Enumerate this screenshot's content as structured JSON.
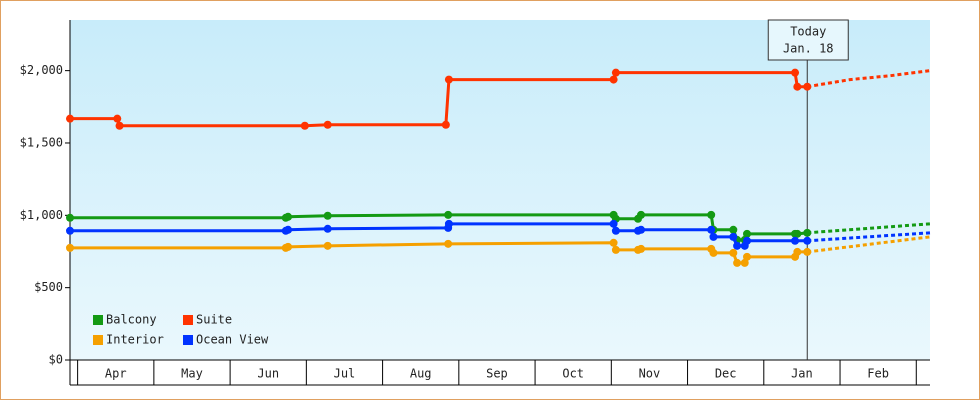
{
  "chart_data": {
    "type": "line",
    "xlim": [
      3.9,
      15.18
    ],
    "ylim": [
      0,
      2350
    ],
    "xticks": [
      {
        "value": 4.5,
        "label": "Apr"
      },
      {
        "value": 5.5,
        "label": "May"
      },
      {
        "value": 6.5,
        "label": "Jun"
      },
      {
        "value": 7.5,
        "label": "Jul"
      },
      {
        "value": 8.5,
        "label": "Aug"
      },
      {
        "value": 9.5,
        "label": "Sep"
      },
      {
        "value": 10.5,
        "label": "Oct"
      },
      {
        "value": 11.5,
        "label": "Nov"
      },
      {
        "value": 12.5,
        "label": "Dec"
      },
      {
        "value": 13.5,
        "label": "Jan"
      },
      {
        "value": 14.5,
        "label": "Feb"
      }
    ],
    "yticks": [
      {
        "value": 0,
        "label": "$0"
      },
      {
        "value": 500,
        "label": "$500"
      },
      {
        "value": 1000,
        "label": "$1,000"
      },
      {
        "value": 1500,
        "label": "$1,500"
      },
      {
        "value": 2000,
        "label": "$2,000"
      }
    ],
    "annotation": {
      "x": 13.57,
      "lines": [
        "Today",
        "Jan. 18"
      ]
    },
    "legend": "lower left",
    "series": [
      {
        "name": "Suite",
        "color": "#ff3300",
        "x": [
          3.9,
          4.52,
          4.55,
          6.98,
          7.28,
          8.83,
          8.87,
          11.03,
          11.06,
          13.41,
          13.44,
          13.57
        ],
        "values": [
          1668,
          1668,
          1619,
          1619,
          1626,
          1626,
          1938,
          1938,
          1986,
          1986,
          1889,
          1889
        ],
        "forecast_x": [
          13.57,
          14.13,
          14.66,
          15.18
        ],
        "forecast_values": [
          1889,
          1938,
          1965,
          2000
        ]
      },
      {
        "name": "Balcony",
        "color": "#149a14",
        "x": [
          3.9,
          6.73,
          6.76,
          7.28,
          8.86,
          11.03,
          11.06,
          11.35,
          11.39,
          12.31,
          12.34,
          12.6,
          12.65,
          12.75,
          12.78,
          13.41,
          13.44,
          13.57
        ],
        "values": [
          983,
          983,
          990,
          997,
          1003,
          1003,
          976,
          976,
          1003,
          1003,
          900,
          900,
          830,
          830,
          872,
          872,
          872,
          879
        ],
        "forecast_x": [
          13.57,
          15.18
        ],
        "forecast_values": [
          879,
          941
        ]
      },
      {
        "name": "Ocean View",
        "color": "#0033ff",
        "x": [
          3.9,
          6.73,
          6.76,
          7.28,
          8.86,
          8.87,
          11.03,
          11.06,
          11.35,
          11.39,
          12.31,
          12.34,
          12.6,
          12.65,
          12.75,
          12.78,
          13.41,
          13.57
        ],
        "values": [
          893,
          893,
          900,
          907,
          913,
          941,
          941,
          893,
          893,
          900,
          900,
          851,
          851,
          789,
          789,
          824,
          824,
          824
        ],
        "forecast_x": [
          13.57,
          15.18
        ],
        "forecast_values": [
          824,
          879
        ]
      },
      {
        "name": "Interior",
        "color": "#f5a000",
        "x": [
          3.9,
          6.73,
          6.76,
          7.28,
          8.86,
          11.03,
          11.06,
          11.35,
          11.39,
          12.31,
          12.34,
          12.6,
          12.65,
          12.75,
          12.78,
          13.41,
          13.44,
          13.57
        ],
        "values": [
          775,
          775,
          782,
          789,
          803,
          810,
          761,
          761,
          768,
          768,
          740,
          740,
          671,
          671,
          713,
          713,
          747,
          747
        ],
        "forecast_x": [
          13.57,
          15.18
        ],
        "forecast_values": [
          747,
          851
        ]
      }
    ],
    "legend_order": [
      1,
      0,
      3,
      2
    ]
  }
}
